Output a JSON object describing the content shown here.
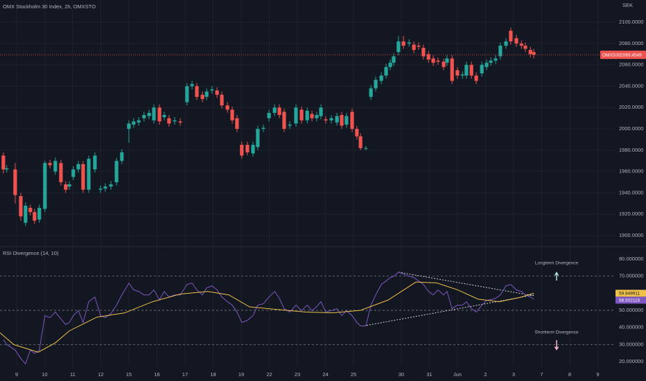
{
  "chart_data": [
    {
      "type": "candlestick",
      "title": "OMX Stockholm 30 Index, 2h, OMXSTO",
      "y_label": "SEK",
      "symbol": "OMXS30",
      "up_color": "#26a69a",
      "down_color": "#ef5350",
      "grid": true,
      "xlim": [
        -0.59,
        21.33
      ],
      "xticks": [
        {
          "value": 0,
          "label": "9"
        },
        {
          "value": 1,
          "label": "10"
        },
        {
          "value": 2,
          "label": "11"
        },
        {
          "value": 3,
          "label": "12"
        },
        {
          "value": 4,
          "label": "15"
        },
        {
          "value": 5,
          "label": "16"
        },
        {
          "value": 6,
          "label": "17"
        },
        {
          "value": 7,
          "label": "18"
        },
        {
          "value": 8,
          "label": "19"
        },
        {
          "value": 9,
          "label": "22"
        },
        {
          "value": 10,
          "label": "23"
        },
        {
          "value": 11,
          "label": "24"
        },
        {
          "value": 12,
          "label": "25"
        },
        {
          "value": 13.7,
          "label": "30"
        },
        {
          "value": 14.7,
          "label": "31"
        },
        {
          "value": 15.7,
          "label": "Jun"
        },
        {
          "value": 16.7,
          "label": "2"
        },
        {
          "value": 17.7,
          "label": "3"
        },
        {
          "value": 18.7,
          "label": "7"
        },
        {
          "value": 19.7,
          "label": "8"
        },
        {
          "value": 20.7,
          "label": "9"
        }
      ],
      "ylim": [
        1890.3,
        2120.8
      ],
      "yticks": [
        {
          "value": 1900,
          "label": "1900.0000"
        },
        {
          "value": 1920,
          "label": "1920.0000"
        },
        {
          "value": 1940,
          "label": "1940.0000"
        },
        {
          "value": 1960,
          "label": "1960.0000"
        },
        {
          "value": 1980,
          "label": "1980.0000"
        },
        {
          "value": 2000,
          "label": "2000.0000"
        },
        {
          "value": 2020,
          "label": "2020.0000"
        },
        {
          "value": 2040,
          "label": "2040.0000"
        },
        {
          "value": 2060,
          "label": "2060.0000"
        },
        {
          "value": 2080,
          "label": "2080.0000"
        },
        {
          "value": 2100,
          "label": "2100.0000"
        }
      ],
      "x": [
        -0.47,
        -0.35,
        -0.05,
        0.15,
        0.32,
        0.49,
        0.64,
        0.81,
        1.01,
        1.19,
        1.38,
        1.58,
        1.75,
        1.88,
        2.02,
        2.2,
        2.37,
        2.57,
        2.79,
        2.99,
        3.16,
        3.36,
        3.56,
        3.75,
        4.0,
        4.17,
        4.35,
        4.54,
        4.72,
        4.89,
        5.09,
        5.26,
        5.43,
        5.63,
        5.83,
        6.07,
        6.25,
        6.42,
        6.62,
        6.77,
        6.96,
        7.14,
        7.31,
        7.51,
        7.68,
        7.85,
        8.02,
        8.22,
        8.42,
        8.59,
        8.79,
        8.99,
        9.19,
        9.36,
        9.53,
        9.73,
        9.95,
        10.15,
        10.35,
        10.52,
        10.69,
        10.84,
        11.01,
        11.21,
        11.41,
        11.58,
        11.75,
        11.95,
        12.12,
        12.25,
        12.44,
        12.62,
        12.79,
        12.99,
        13.16,
        13.31,
        13.43,
        13.6,
        13.78,
        13.98,
        14.15,
        14.32,
        14.49,
        14.67,
        14.84,
        15.01,
        15.21,
        15.33,
        15.51,
        15.7,
        15.88,
        16.02,
        16.2,
        16.37,
        16.57,
        16.74,
        16.89,
        17.06,
        17.23,
        17.43,
        17.6,
        17.8,
        17.98,
        18.12,
        18.3,
        18.42
      ],
      "open": [
        1975,
        1962,
        1962,
        1937,
        1912,
        1926,
        1922,
        1915,
        1925,
        1968,
        1960,
        1968,
        1948,
        1946,
        1955,
        1962,
        1967,
        1943,
        1962,
        1943,
        1944,
        1946,
        1950,
        1970,
        2000,
        2004,
        2006,
        2010,
        2012,
        2008,
        2020,
        2011,
        2010,
        2007,
        2007,
        2025,
        2040,
        2040,
        2032,
        2030,
        2036,
        2036,
        2032,
        2022,
        2018,
        2010,
        1985,
        1985,
        1977,
        1983,
        2000,
        2010,
        2015,
        2020,
        2016,
        2003,
        2005,
        2018,
        2008,
        2014,
        2010,
        2012,
        2009,
        2008,
        2006,
        2013,
        2004,
        2016,
        2000,
        1993,
        1982,
        2030,
        2038,
        2045,
        2050,
        2058,
        2062,
        2072,
        2082,
        2080,
        2079,
        2078,
        2076,
        2070,
        2066,
        2064,
        2063,
        2062,
        2066,
        2055,
        2050,
        2050,
        2060,
        2050,
        2052,
        2058,
        2062,
        2064,
        2068,
        2078,
        2092,
        2085,
        2080,
        2078,
        2074,
        2072
      ],
      "high": [
        1978,
        1966,
        1968,
        1940,
        1931,
        1929,
        1925,
        1929,
        1970,
        1971,
        1973,
        1971,
        1951,
        1951,
        1965,
        1970,
        1970,
        1975,
        1978,
        1947,
        1949,
        1951,
        1973,
        1981,
        2008,
        2010,
        2011,
        2016,
        2018,
        2023,
        2023,
        2016,
        2013,
        2011,
        2010,
        2043,
        2045,
        2043,
        2035,
        2038,
        2040,
        2039,
        2035,
        2025,
        2021,
        2013,
        1988,
        1988,
        1988,
        2003,
        2004,
        2018,
        2023,
        2023,
        2019,
        2007,
        2023,
        2021,
        2020,
        2017,
        2016,
        2023,
        2012,
        2013,
        2015,
        2016,
        2015,
        2019,
        2003,
        1996,
        1984,
        2041,
        2049,
        2053,
        2061,
        2065,
        2071,
        2087,
        2087,
        2084,
        2082,
        2081,
        2079,
        2073,
        2069,
        2067,
        2066,
        2069,
        2069,
        2058,
        2054,
        2063,
        2063,
        2053,
        2063,
        2065,
        2067,
        2069,
        2081,
        2085,
        2095,
        2088,
        2083,
        2081,
        2077,
        2075
      ],
      "low": [
        1958,
        1959,
        1930,
        1914,
        1909,
        1919,
        1911,
        1912,
        1922,
        1963,
        1957,
        1947,
        1940,
        1943,
        1952,
        1959,
        1940,
        1940,
        1959,
        1940,
        1941,
        1943,
        1947,
        1967,
        1987,
        2001,
        2003,
        2007,
        2009,
        2005,
        2004,
        2008,
        2002,
        2004,
        2003,
        2022,
        2037,
        2027,
        2025,
        2027,
        2033,
        2029,
        2019,
        2015,
        2005,
        1997,
        1972,
        1975,
        1974,
        1980,
        1997,
        2007,
        2012,
        2010,
        1997,
        2000,
        2002,
        2005,
        2005,
        2007,
        2007,
        2009,
        2005,
        2005,
        2003,
        2000,
        2001,
        1997,
        1990,
        1980,
        1980,
        2027,
        2035,
        2042,
        2047,
        2055,
        2059,
        2069,
        2075,
        2077,
        2071,
        2074,
        2065,
        2062,
        2059,
        2060,
        2055,
        2059,
        2042,
        2047,
        2047,
        2047,
        2047,
        2042,
        2049,
        2055,
        2059,
        2061,
        2065,
        2075,
        2079,
        2077,
        2075,
        2072,
        2067,
        2066
      ],
      "close": [
        1962,
        1963,
        1938,
        1918,
        1928,
        1922,
        1914,
        1926,
        1968,
        1966,
        1970,
        1950,
        1943,
        1948,
        1962,
        1967,
        1943,
        1972,
        1975,
        1944,
        1946,
        1948,
        1970,
        1978,
        2005,
        2007,
        2008,
        2013,
        2015,
        2020,
        2007,
        2013,
        2005,
        2008,
        2006,
        2040,
        2042,
        2030,
        2028,
        2035,
        2037,
        2032,
        2022,
        2018,
        2008,
        2000,
        1975,
        1978,
        1985,
        2000,
        2001,
        2015,
        2020,
        2013,
        2000,
        2004,
        2020,
        2008,
        2017,
        2010,
        2013,
        2020,
        2008,
        2010,
        2012,
        2003,
        2012,
        2000,
        1993,
        1982,
        1982,
        2038,
        2046,
        2050,
        2058,
        2062,
        2068,
        2082,
        2078,
        2081,
        2074,
        2077,
        2068,
        2065,
        2062,
        2063,
        2058,
        2066,
        2045,
        2050,
        2051,
        2060,
        2050,
        2045,
        2060,
        2062,
        2064,
        2066,
        2078,
        2082,
        2082,
        2080,
        2078,
        2075,
        2070,
        2069.4549
      ]
    },
    {
      "type": "line",
      "title": "RSI Divergence (14, 10)",
      "xlim": [
        -0.59,
        21.33
      ],
      "ylim": [
        16.8,
        86.8
      ],
      "yticks": [
        {
          "value": 20,
          "label": "20.000000"
        },
        {
          "value": 30,
          "label": "30.000000"
        },
        {
          "value": 40,
          "label": "40.000000"
        },
        {
          "value": 50,
          "label": "50.000000"
        },
        {
          "value": 60,
          "label": "60.000000"
        },
        {
          "value": 70,
          "label": "70.000000"
        },
        {
          "value": 80,
          "label": "80.000000"
        }
      ],
      "levels": [
        70,
        50,
        30
      ],
      "annotations": [
        "Longterm Divergence",
        "Shortterm Divergence"
      ],
      "series": [
        {
          "color": "#7e57c2",
          "label_color": "#ffffff",
          "x": [
            -0.47,
            -0.35,
            -0.05,
            0.15,
            0.32,
            0.49,
            0.64,
            0.81,
            1.01,
            1.19,
            1.38,
            1.58,
            1.75,
            1.88,
            2.02,
            2.2,
            2.37,
            2.57,
            2.79,
            2.99,
            3.16,
            3.36,
            3.56,
            3.75,
            4.0,
            4.17,
            4.35,
            4.54,
            4.72,
            4.89,
            5.09,
            5.26,
            5.43,
            5.63,
            5.83,
            6.07,
            6.25,
            6.42,
            6.62,
            6.77,
            6.96,
            7.14,
            7.31,
            7.51,
            7.68,
            7.85,
            8.02,
            8.22,
            8.42,
            8.59,
            8.79,
            8.99,
            9.19,
            9.36,
            9.53,
            9.73,
            9.95,
            10.15,
            10.35,
            10.52,
            10.69,
            10.84,
            11.01,
            11.21,
            11.41,
            11.58,
            11.75,
            11.95,
            12.12,
            12.25,
            12.44,
            12.62,
            12.79,
            12.99,
            13.16,
            13.31,
            13.43,
            13.6,
            13.78,
            13.98,
            14.15,
            14.32,
            14.49,
            14.67,
            14.84,
            15.01,
            15.21,
            15.33,
            15.51,
            15.7,
            15.88,
            16.02,
            16.2,
            16.37,
            16.57,
            16.74,
            16.89,
            17.06,
            17.23,
            17.43,
            17.6,
            17.8,
            17.98,
            18.12,
            18.3,
            18.42
          ],
          "values": [
            32.8,
            30,
            26.8,
            21.9,
            18.7,
            26.8,
            24.8,
            26.8,
            46.9,
            45.7,
            49.0,
            44.9,
            41.7,
            42.9,
            46.9,
            49.8,
            42.9,
            55.0,
            57.8,
            46.9,
            45.7,
            48.1,
            53.0,
            59.0,
            65.9,
            61.9,
            61.0,
            59.0,
            59.0,
            61.9,
            56.2,
            61.0,
            57.8,
            59.0,
            59.0,
            65.1,
            65.9,
            61.9,
            59.0,
            63.1,
            64.3,
            61.9,
            57.8,
            55.0,
            53.0,
            49.0,
            42.9,
            44.1,
            46.9,
            53.0,
            53.8,
            57.8,
            61.0,
            57.0,
            51.0,
            49.0,
            53.0,
            49.8,
            53.0,
            49.8,
            52.2,
            55.0,
            49.0,
            49.8,
            51.0,
            46.9,
            49.8,
            46.9,
            42.9,
            40.9,
            40.9,
            53.0,
            59.0,
            65.1,
            67.1,
            69.1,
            69.9,
            72.3,
            71.1,
            69.9,
            69.1,
            67.1,
            65.1,
            61.0,
            59.0,
            61.9,
            59.0,
            61.0,
            51.0,
            53.0,
            53.0,
            55.0,
            51.0,
            49.0,
            53.0,
            55.8,
            56.2,
            57.0,
            59.0,
            64.3,
            65.1,
            61.9,
            61.0,
            59.0,
            57.8,
            56.502115
          ]
        },
        {
          "color": "#f0c14b",
          "label_color": "#131722",
          "x": [
            -0.59,
            -0.1,
            0.77,
            1.38,
            1.88,
            2.86,
            3.85,
            4.84,
            5.83,
            6.81,
            7.56,
            8.3,
            9.28,
            10.27,
            11.26,
            12.25,
            13.23,
            14.22,
            14.96,
            15.7,
            16.44,
            17.19,
            17.93,
            18.42
          ],
          "values": [
            36.9,
            30,
            25.5,
            31,
            38,
            46,
            48.5,
            55,
            59.5,
            61,
            59,
            52,
            50.5,
            49,
            48.5,
            50,
            56,
            66.5,
            66,
            62,
            56.5,
            55,
            57.5,
            59.949911
          ]
        }
      ],
      "trendlines": [
        {
          "x": [
            13.6,
            18.42
          ],
          "values": [
            72.3,
            58.5
          ]
        },
        {
          "x": [
            12.37,
            18.42
          ],
          "values": [
            40.9,
            59.0
          ]
        }
      ]
    }
  ]
}
